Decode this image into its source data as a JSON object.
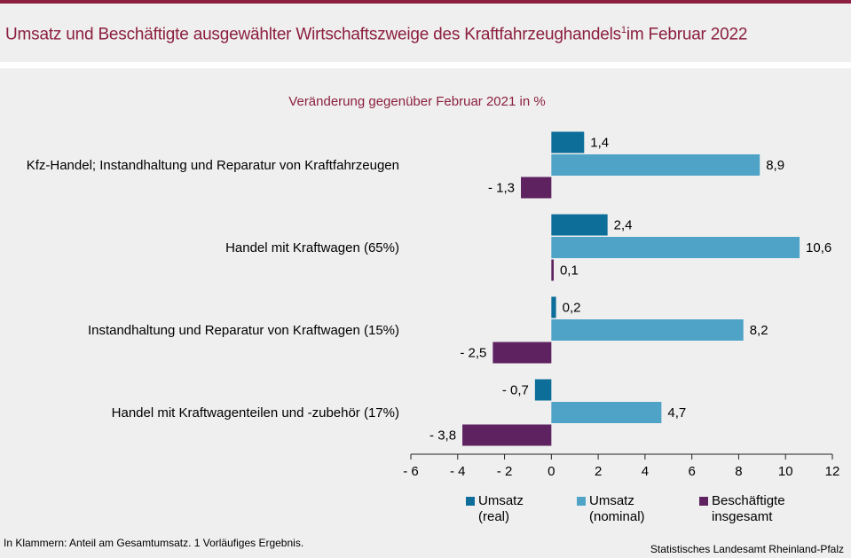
{
  "header": {
    "title": "Umsatz und Beschäftigte ausgewählter Wirtschaftszweige des Kraftfahrzeughandels",
    "title_sup": "1",
    "title_suffix": "im Februar 2022"
  },
  "chart_data": {
    "type": "bar",
    "orientation": "horizontal",
    "title": "Veränderung gegenüber Februar 2021 in %",
    "categories": [
      "Kfz-Handel; Instandhaltung und Reparatur von Kraftfahrzeugen",
      "Handel mit Kraftwagen (65%)",
      "Instandhaltung und Reparatur von Kraftwagen (15%)",
      "Handel mit Kraftwagenteilen und -zubehör (17%)"
    ],
    "series": [
      {
        "name": "Umsatz (real)",
        "legend_line1": "Umsatz",
        "legend_line2": "(real)",
        "color": "#0e6e9a",
        "values": [
          1.4,
          2.4,
          0.2,
          -0.7
        ],
        "labels": [
          "1,4",
          "2,4",
          "0,2",
          "- 0,7"
        ]
      },
      {
        "name": "Umsatz (nominal)",
        "legend_line1": "Umsatz",
        "legend_line2": "(nominal)",
        "color": "#4fa3c7",
        "values": [
          8.9,
          10.6,
          8.2,
          4.7
        ],
        "labels": [
          "8,9",
          "10,6",
          "8,2",
          "4,7"
        ]
      },
      {
        "name": "Beschäftigte insgesamt",
        "legend_line1": "Beschäftigte",
        "legend_line2": "insgesamt",
        "color": "#5e2261",
        "values": [
          -1.3,
          0.1,
          -2.5,
          -3.8
        ],
        "labels": [
          "- 1,3",
          "0,1",
          "- 2,5",
          "- 3,8"
        ]
      }
    ],
    "xlim": [
      -6,
      12
    ],
    "ticks": [
      -6,
      -4,
      -2,
      0,
      2,
      4,
      6,
      8,
      10,
      12
    ],
    "tick_labels": [
      "- 6",
      "- 4",
      "- 2",
      "0",
      "2",
      "4",
      "6",
      "8",
      "10",
      "12"
    ],
    "legend_position": "bottom"
  },
  "footer": {
    "note": "In Klammern: Anteil am Gesamtumsatz. 1 Vorläufiges  Ergebnis.",
    "source": "Statistisches Landesamt Rheinland-Pfalz"
  }
}
